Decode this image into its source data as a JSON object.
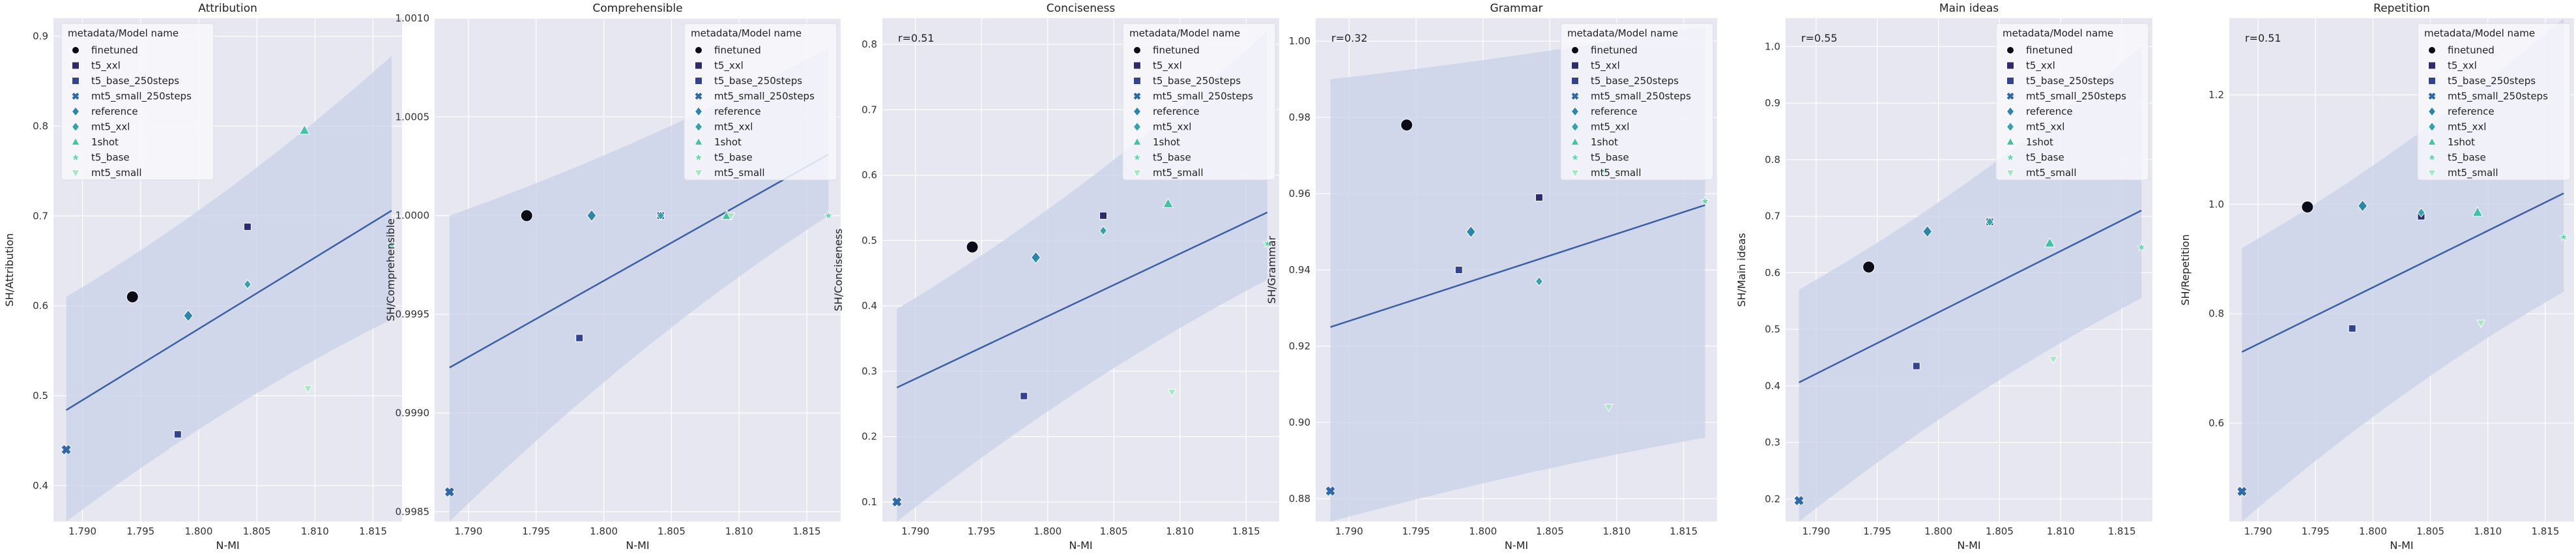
{
  "figure": {
    "xlabel": "N-MI",
    "legend_title": "metadata/Model name",
    "legend_placement": "top-right",
    "legend_labels": [
      "finetuned",
      "t5_xxl",
      "t5_base_250steps",
      "mt5_small_250steps",
      "reference",
      "mt5_xxl",
      "1shot",
      "t5_base",
      "mt5_small"
    ],
    "series_colors": [
      "#0b0b1a",
      "#2e2a6e",
      "#33438f",
      "#3068a8",
      "#2c86ab",
      "#35a2ad",
      "#43c2a7",
      "#6bd7b0",
      "#a6e8c2"
    ],
    "series_markers": [
      "circle",
      "square",
      "square",
      "plus-star",
      "diamond",
      "diamond",
      "triangle-up",
      "star",
      "triangle-down"
    ],
    "series_sizes": [
      "large",
      "small",
      "small",
      "medium",
      "medium",
      "small",
      "medium",
      "small",
      "small"
    ],
    "x_ticks": [
      "1.790",
      "1.795",
      "1.800",
      "1.805",
      "1.810",
      "1.815"
    ],
    "colors": {
      "axes_bg": "#e6e7f0",
      "grid": "#ffffff",
      "line": "#3a5fa8",
      "band": "#c9d2e8",
      "legend_bg": "#f7f7fb"
    }
  },
  "chart_data": [
    {
      "type": "scatter",
      "title": "Attribution",
      "xlabel": "N-MI",
      "ylabel": "SH/Attribution",
      "xlim": [
        1.7875,
        1.8175
      ],
      "ylim": [
        0.36,
        0.92
      ],
      "y_ticks": [
        "0.4",
        "0.5",
        "0.6",
        "0.7",
        "0.8",
        "0.9"
      ],
      "y_tick_values": [
        0.4,
        0.5,
        0.6,
        0.7,
        0.8,
        0.9
      ],
      "annotation": "",
      "grid": true,
      "series": [
        {
          "name": "finetuned",
          "x": 1.7943,
          "y": 0.61
        },
        {
          "name": "t5_xxl",
          "x": 1.8042,
          "y": 0.688
        },
        {
          "name": "t5_base_250steps",
          "x": 1.7982,
          "y": 0.457
        },
        {
          "name": "mt5_small_250steps",
          "x": 1.7886,
          "y": 0.44
        },
        {
          "name": "reference",
          "x": 1.7991,
          "y": 0.589
        },
        {
          "name": "mt5_xxl",
          "x": 1.8042,
          "y": 0.624
        },
        {
          "name": "1shot",
          "x": 1.8091,
          "y": 0.795
        },
        {
          "name": "t5_base",
          "x": 1.8166,
          "y": 0.668
        },
        {
          "name": "mt5_small",
          "x": 1.8094,
          "y": 0.508
        }
      ],
      "regression": {
        "x": [
          1.7886,
          1.8166
        ],
        "y": [
          0.484,
          0.706
        ],
        "band_upper": [
          0.61,
          0.878
        ],
        "band_lower": [
          0.36,
          0.585
        ]
      }
    },
    {
      "type": "scatter",
      "title": "Comprehensible",
      "xlabel": "N-MI",
      "ylabel": "SH/Comprehensible",
      "xlim": [
        1.7875,
        1.8175
      ],
      "ylim": [
        0.99845,
        1.001
      ],
      "y_ticks": [
        "0.9985",
        "0.9990",
        "0.9995",
        "1.0000",
        "1.0005",
        "1.0010"
      ],
      "y_tick_values": [
        0.9985,
        0.999,
        0.9995,
        1.0,
        1.0005,
        1.001
      ],
      "annotation": "",
      "grid": true,
      "series": [
        {
          "name": "finetuned",
          "x": 1.7943,
          "y": 1.0
        },
        {
          "name": "t5_xxl",
          "x": 1.8042,
          "y": 1.0
        },
        {
          "name": "t5_base_250steps",
          "x": 1.7982,
          "y": 0.99938
        },
        {
          "name": "mt5_small_250steps",
          "x": 1.7886,
          "y": 0.9986
        },
        {
          "name": "reference",
          "x": 1.7991,
          "y": 1.0
        },
        {
          "name": "mt5_xxl",
          "x": 1.8042,
          "y": 1.0
        },
        {
          "name": "1shot",
          "x": 1.8091,
          "y": 1.0
        },
        {
          "name": "t5_base",
          "x": 1.8166,
          "y": 1.0
        },
        {
          "name": "mt5_small",
          "x": 1.8094,
          "y": 1.0
        }
      ],
      "regression": {
        "x": [
          1.7886,
          1.8166
        ],
        "y": [
          0.99923,
          1.00031
        ],
        "band_upper": [
          1.0,
          1.00085
        ],
        "band_lower": [
          0.99845,
          1.0
        ]
      }
    },
    {
      "type": "scatter",
      "title": "Conciseness",
      "xlabel": "N-MI",
      "ylabel": "SH/Conciseness",
      "xlim": [
        1.7875,
        1.8175
      ],
      "ylim": [
        0.07,
        0.84
      ],
      "y_ticks": [
        "0.1",
        "0.2",
        "0.3",
        "0.4",
        "0.5",
        "0.6",
        "0.7",
        "0.8"
      ],
      "y_tick_values": [
        0.1,
        0.2,
        0.3,
        0.4,
        0.5,
        0.6,
        0.7,
        0.8
      ],
      "annotation": "r=0.51",
      "grid": true,
      "series": [
        {
          "name": "finetuned",
          "x": 1.7943,
          "y": 0.49
        },
        {
          "name": "t5_xxl",
          "x": 1.8042,
          "y": 0.538
        },
        {
          "name": "t5_base_250steps",
          "x": 1.7982,
          "y": 0.262
        },
        {
          "name": "mt5_small_250steps",
          "x": 1.7886,
          "y": 0.1
        },
        {
          "name": "reference",
          "x": 1.7991,
          "y": 0.474
        },
        {
          "name": "mt5_xxl",
          "x": 1.8042,
          "y": 0.515
        },
        {
          "name": "1shot",
          "x": 1.8091,
          "y": 0.556
        },
        {
          "name": "t5_base",
          "x": 1.8166,
          "y": 0.495
        },
        {
          "name": "mt5_small",
          "x": 1.8094,
          "y": 0.268
        }
      ],
      "regression": {
        "x": [
          1.7886,
          1.8166
        ],
        "y": [
          0.275,
          0.543
        ],
        "band_upper": [
          0.395,
          0.82
        ],
        "band_lower": [
          0.07,
          0.44
        ]
      }
    },
    {
      "type": "scatter",
      "title": "Grammar",
      "xlabel": "N-MI",
      "ylabel": "SH/Grammar",
      "xlim": [
        1.7875,
        1.8175
      ],
      "ylim": [
        0.874,
        1.006
      ],
      "y_ticks": [
        "0.88",
        "0.90",
        "0.92",
        "0.94",
        "0.96",
        "0.98",
        "1.00"
      ],
      "y_tick_values": [
        0.88,
        0.9,
        0.92,
        0.94,
        0.96,
        0.98,
        1.0
      ],
      "annotation": "r=0.32",
      "grid": true,
      "series": [
        {
          "name": "finetuned",
          "x": 1.7943,
          "y": 0.978
        },
        {
          "name": "t5_xxl",
          "x": 1.8042,
          "y": 0.959
        },
        {
          "name": "t5_base_250steps",
          "x": 1.7982,
          "y": 0.94
        },
        {
          "name": "mt5_small_250steps",
          "x": 1.7886,
          "y": 0.882
        },
        {
          "name": "reference",
          "x": 1.7991,
          "y": 0.95
        },
        {
          "name": "mt5_xxl",
          "x": 1.8042,
          "y": 0.937
        },
        {
          "name": "1shot",
          "x": 1.8091,
          "y": 0.966
        },
        {
          "name": "t5_base",
          "x": 1.8166,
          "y": 0.958
        },
        {
          "name": "mt5_small",
          "x": 1.8094,
          "y": 0.904
        }
      ],
      "regression": {
        "x": [
          1.7886,
          1.8166
        ],
        "y": [
          0.925,
          0.957
        ],
        "band_upper": [
          0.99,
          1.004
        ],
        "band_lower": [
          0.874,
          0.896
        ]
      }
    },
    {
      "type": "scatter",
      "title": "Main ideas",
      "xlabel": "N-MI",
      "ylabel": "SH/Main ideas",
      "xlim": [
        1.7875,
        1.8175
      ],
      "ylim": [
        0.16,
        1.05
      ],
      "y_ticks": [
        "0.2",
        "0.3",
        "0.4",
        "0.5",
        "0.6",
        "0.7",
        "0.8",
        "0.9",
        "1.0"
      ],
      "y_tick_values": [
        0.2,
        0.3,
        0.4,
        0.5,
        0.6,
        0.7,
        0.8,
        0.9,
        1.0
      ],
      "annotation": "r=0.55",
      "grid": true,
      "series": [
        {
          "name": "finetuned",
          "x": 1.7943,
          "y": 0.61
        },
        {
          "name": "t5_xxl",
          "x": 1.8042,
          "y": 0.69
        },
        {
          "name": "t5_base_250steps",
          "x": 1.7982,
          "y": 0.435
        },
        {
          "name": "mt5_small_250steps",
          "x": 1.7886,
          "y": 0.197
        },
        {
          "name": "reference",
          "x": 1.7991,
          "y": 0.673
        },
        {
          "name": "mt5_xxl",
          "x": 1.8042,
          "y": 0.69
        },
        {
          "name": "1shot",
          "x": 1.8091,
          "y": 0.652
        },
        {
          "name": "t5_base",
          "x": 1.8166,
          "y": 0.645
        },
        {
          "name": "mt5_small",
          "x": 1.8094,
          "y": 0.447
        }
      ],
      "regression": {
        "x": [
          1.7886,
          1.8166
        ],
        "y": [
          0.406,
          0.71
        ],
        "band_upper": [
          0.57,
          1.0
        ],
        "band_lower": [
          0.16,
          0.555
        ]
      }
    },
    {
      "type": "scatter",
      "title": "Repetition",
      "xlabel": "N-MI",
      "ylabel": "SH/Repetition",
      "xlim": [
        1.7875,
        1.8175
      ],
      "ylim": [
        0.42,
        1.34
      ],
      "y_ticks": [
        "0.6",
        "0.8",
        "1.0",
        "1.2"
      ],
      "y_tick_values": [
        0.6,
        0.8,
        1.0,
        1.2
      ],
      "annotation": "r=0.51",
      "grid": true,
      "series": [
        {
          "name": "finetuned",
          "x": 1.7943,
          "y": 0.995
        },
        {
          "name": "t5_xxl",
          "x": 1.8042,
          "y": 0.978
        },
        {
          "name": "t5_base_250steps",
          "x": 1.7982,
          "y": 0.773
        },
        {
          "name": "mt5_small_250steps",
          "x": 1.7886,
          "y": 0.475
        },
        {
          "name": "reference",
          "x": 1.7991,
          "y": 0.997
        },
        {
          "name": "mt5_xxl",
          "x": 1.8042,
          "y": 0.985
        },
        {
          "name": "1shot",
          "x": 1.8091,
          "y": 0.985
        },
        {
          "name": "t5_base",
          "x": 1.8166,
          "y": 0.94
        },
        {
          "name": "mt5_small",
          "x": 1.8094,
          "y": 0.783
        }
      ],
      "regression": {
        "x": [
          1.7886,
          1.8166
        ],
        "y": [
          0.73,
          1.02
        ],
        "band_upper": [
          0.92,
          1.34
        ],
        "band_lower": [
          0.42,
          0.84
        ]
      }
    }
  ]
}
